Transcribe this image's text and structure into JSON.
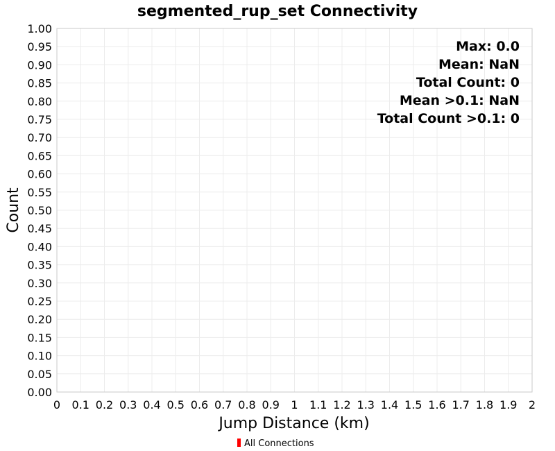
{
  "chart_data": {
    "type": "bar",
    "title": "segmented_rup_set Connectivity",
    "xlabel": "Jump Distance (km)",
    "ylabel": "Count",
    "xlim": [
      0,
      2
    ],
    "ylim": [
      0,
      1
    ],
    "x_tick_labels": [
      "0",
      "0.1",
      "0.2",
      "0.3",
      "0.4",
      "0.5",
      "0.6",
      "0.7",
      "0.8",
      "0.9",
      "1",
      "1.1",
      "1.2",
      "1.3",
      "1.4",
      "1.5",
      "1.6",
      "1.7",
      "1.8",
      "1.9",
      "2"
    ],
    "y_tick_labels": [
      "0.00",
      "0.05",
      "0.10",
      "0.15",
      "0.20",
      "0.25",
      "0.30",
      "0.35",
      "0.40",
      "0.45",
      "0.50",
      "0.55",
      "0.60",
      "0.65",
      "0.70",
      "0.75",
      "0.80",
      "0.85",
      "0.90",
      "0.95",
      "1.00"
    ],
    "grid": true,
    "series": [
      {
        "name": "All Connections",
        "color": "#ff0000",
        "x": [],
        "values": []
      }
    ],
    "annotations": [
      "Max: 0.0",
      "Mean: NaN",
      "Total Count: 0",
      "Mean >0.1: NaN",
      "Total Count >0.1: 0"
    ],
    "annotation_placement": "top-right",
    "legend": {
      "placement": "bottom-center",
      "entries": [
        "All Connections"
      ]
    }
  }
}
